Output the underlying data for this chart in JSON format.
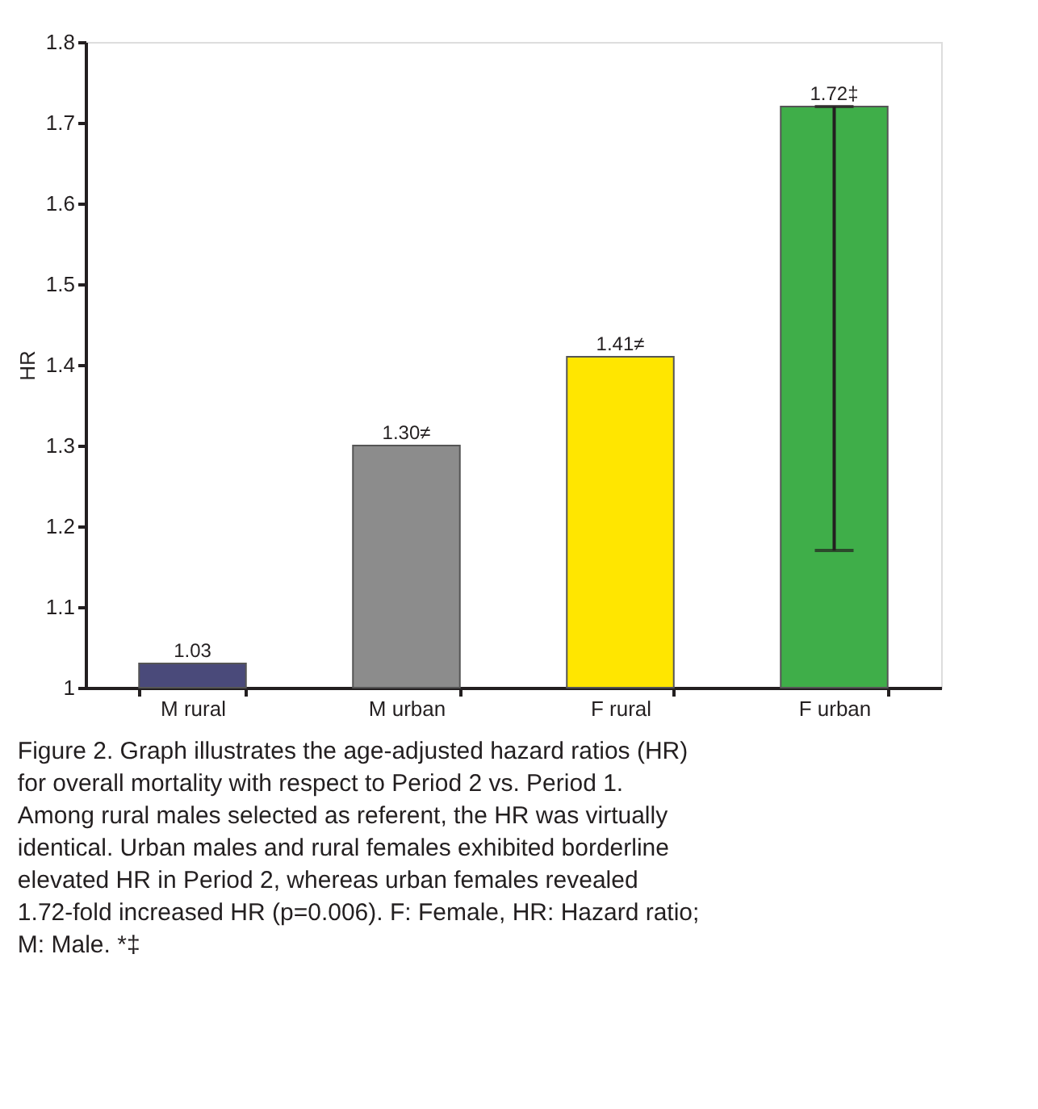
{
  "chart_data": {
    "type": "bar",
    "ylabel": "HR",
    "categories": [
      "M rural",
      "M urban",
      "F rural",
      "F urban"
    ],
    "values": [
      1.03,
      1.3,
      1.41,
      1.72
    ],
    "colors": [
      "#4a4a7a",
      "#8c8c8c",
      "#ffe600",
      "#3fae49"
    ],
    "value_labels": [
      "1.03",
      "1.30≠",
      "1.41≠",
      "1.72‡"
    ],
    "errors": [
      null,
      null,
      null,
      [
        1.17,
        1.72
      ]
    ],
    "ylim": [
      1,
      1.8
    ],
    "yticks": [
      {
        "value": 1,
        "label": "1"
      },
      1.1,
      1.2,
      1.3,
      1.4,
      1.5,
      1.6,
      1.7,
      1.8
    ],
    "grid": false,
    "annotations": [
      "Figure 2. Graph illustrates the age-adjusted hazard ratios (HR) for overall mortality with respect to Period 2 vs. Period 1. Among rural males selected as referent, the HR was virtually identical. Urban males and rural females exhibited borderline elevated HR in Period 2, whereas urban females revealed 1.72-fold increased HR (p=0.006). F: Female, HR: Hazard ratio; M: Male. *‡"
    ]
  }
}
